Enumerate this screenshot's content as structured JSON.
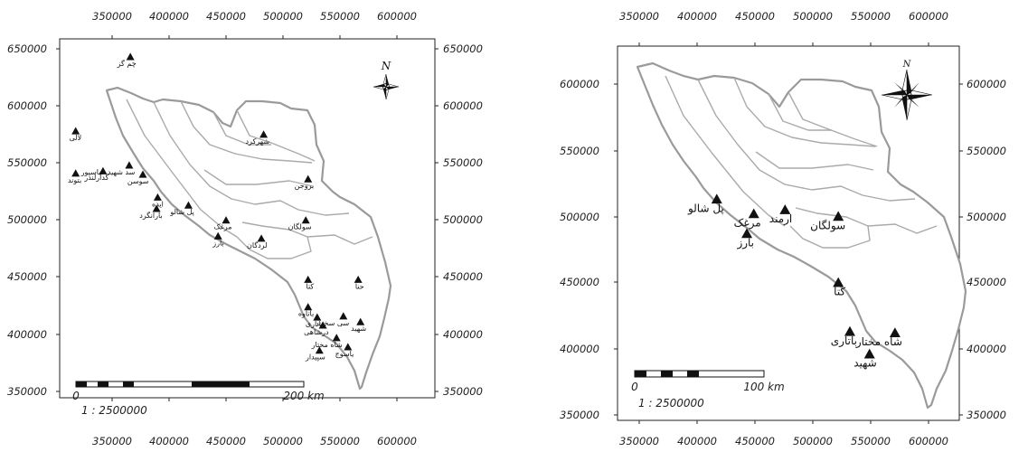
{
  "maps": [
    {
      "x_ticks": [
        "350000",
        "400000",
        "450000",
        "500000",
        "550000",
        "600000"
      ],
      "y_ticks": [
        "650000",
        "600000",
        "550000",
        "500000",
        "450000",
        "400000",
        "350000"
      ],
      "north_label": "N",
      "scale_labels": [
        "0",
        "200 km"
      ],
      "scale_ratio": "1 : 2500000",
      "stations": [
        {
          "name": "چم گز",
          "x": 366000,
          "y": 643000
        },
        {
          "name": "لالی",
          "x": 318000,
          "y": 578000
        },
        {
          "name": "بتوند",
          "x": 318000,
          "y": 541000
        },
        {
          "name": "گدارلندر",
          "x": 342000,
          "y": 543000
        },
        {
          "name": "سد شهید عباسپور",
          "x": 365000,
          "y": 548000
        },
        {
          "name": "سوسن",
          "x": 377000,
          "y": 540000
        },
        {
          "name": "ایذه",
          "x": 390000,
          "y": 520000
        },
        {
          "name": "بارانگرد",
          "x": 389000,
          "y": 510000
        },
        {
          "name": "پل شالو",
          "x": 417000,
          "y": 513000
        },
        {
          "name": "مرغک",
          "x": 450000,
          "y": 500000
        },
        {
          "name": "بارز",
          "x": 443000,
          "y": 486000
        },
        {
          "name": "لردگان",
          "x": 481000,
          "y": 484000
        },
        {
          "name": "شهرکرد",
          "x": 483000,
          "y": 575000
        },
        {
          "name": "بروجن",
          "x": 522000,
          "y": 536000
        },
        {
          "name": "سولگان",
          "x": 520000,
          "y": 500000
        },
        {
          "name": "کتا",
          "x": 522000,
          "y": 448000
        },
        {
          "name": "حنا",
          "x": 566000,
          "y": 448000
        },
        {
          "name": "باتاوه",
          "x": 522000,
          "y": 424000
        },
        {
          "name": "باتاری",
          "x": 530000,
          "y": 415000
        },
        {
          "name": "درشاهی",
          "x": 535000,
          "y": 408000
        },
        {
          "name": "سی سخت",
          "x": 553000,
          "y": 416000
        },
        {
          "name": "شهید",
          "x": 568000,
          "y": 411000
        },
        {
          "name": "شاه مختار",
          "x": 547000,
          "y": 397000
        },
        {
          "name": "یاسوج",
          "x": 557000,
          "y": 389000
        },
        {
          "name": "سپیدار",
          "x": 532000,
          "y": 386000
        }
      ]
    },
    {
      "x_ticks": [
        "350000",
        "400000",
        "450000",
        "500000",
        "550000",
        "600000"
      ],
      "y_ticks": [
        "600000",
        "550000",
        "500000",
        "450000",
        "400000",
        "350000"
      ],
      "north_label": "N",
      "scale_labels": [
        "0",
        "100 km"
      ],
      "scale_ratio": "1 : 2500000",
      "stations": [
        {
          "name": "پل شالو",
          "x": 417000,
          "y": 513000
        },
        {
          "name": "مرغک",
          "x": 449000,
          "y": 502000
        },
        {
          "name": "ارمند",
          "x": 476000,
          "y": 505000
        },
        {
          "name": "بارز",
          "x": 443000,
          "y": 487000
        },
        {
          "name": "سولگان",
          "x": 522000,
          "y": 500000
        },
        {
          "name": "کتا",
          "x": 522000,
          "y": 450000
        },
        {
          "name": "باتاری",
          "x": 532000,
          "y": 413000
        },
        {
          "name": "شاه مختار",
          "x": 571000,
          "y": 412000
        },
        {
          "name": "شهید",
          "x": 549000,
          "y": 396000
        }
      ]
    }
  ]
}
